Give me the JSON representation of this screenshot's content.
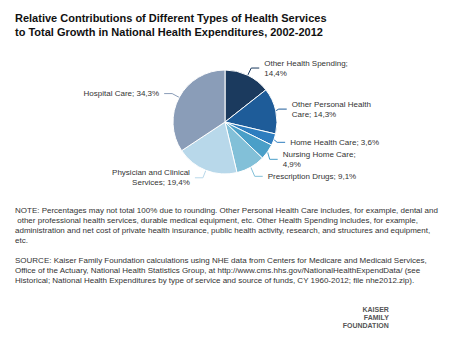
{
  "chart_data": {
    "type": "pie",
    "title": "Relative Contributions of Different Types of Health Services\nto Total Growth in National Health Expenditures, 2002-2012",
    "values": [
      14.4,
      14.3,
      3.6,
      4.9,
      9.1,
      19.4,
      34.3
    ],
    "value_labels": [
      "Other Health Spending;\n14,4%",
      "Other Personal Health\nCare; 14,3%",
      "Home Health Care; 3,6%",
      "Nursing Home Care;\n4,9%",
      "Prescription Drugs; 9,1%",
      "Physician and Clinical\nServices; 19,4%",
      "Hospital Care; 34,3%"
    ],
    "colors": [
      "#1b3a5e",
      "#1e5c99",
      "#2e7dbf",
      "#4a9fc8",
      "#82c0d8",
      "#b8d8ea",
      "#8a9db8"
    ],
    "annotations": [
      "NOTE: Percentages may not total 100% due to rounding. Other Personal Health Care includes, for example, dental and other professional health services, durable medical equipment, etc. Other Health Spending includes, for example, administration and net cost of private health insurance, public health activity, research, and structures and equipment, etc.",
      "SOURCE: Kaiser Family Foundation calculations using NHE data from Centers for Medicare and Medicaid Services, Office of the Actuary, National Health Statistics Group, at http://www.cms.hhs.gov/NationalHealthExpendData/ (see Historical; National Health Expenditures by type of service and source of funds, CY 1960-2012; file nhe2012.zip).",
      "KAISER",
      "FAMILY",
      "FOUNDATION"
    ]
  }
}
